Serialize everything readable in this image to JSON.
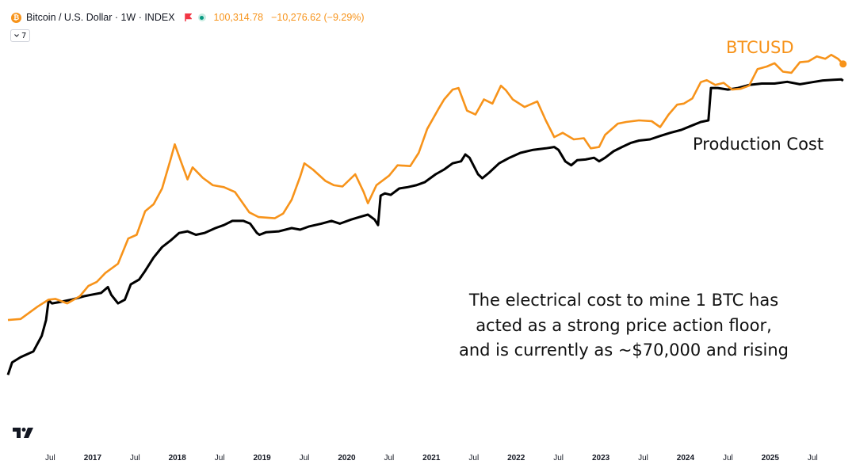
{
  "header": {
    "coin_symbol": "₿",
    "symbol": "Bitcoin / U.S. Dollar · 1W · INDEX",
    "price": "100,314.78",
    "change": "−10,276.62 (−9.29%)",
    "indicator_count": "7"
  },
  "colors": {
    "btc": "#f7931a",
    "cost": "#000000",
    "flag": "#f23645",
    "status": "#089981"
  },
  "icons": [
    "bitcoin-icon",
    "flag-icon",
    "status-dot-icon",
    "chevron-down-icon",
    "tradingview-logo-icon"
  ],
  "chart_data": {
    "type": "line",
    "x_axis": {
      "tick_labels": [
        "Jul",
        "2017",
        "Jul",
        "2018",
        "Jul",
        "2019",
        "Jul",
        "2020",
        "Jul",
        "2021",
        "Jul",
        "2022",
        "Jul",
        "2023",
        "Jul",
        "2024",
        "Jul",
        "2025",
        "Jul"
      ],
      "tick_dates": [
        2016.5,
        2017.0,
        2017.5,
        2018.0,
        2018.5,
        2019.0,
        2019.5,
        2020.0,
        2020.5,
        2021.0,
        2021.5,
        2022.0,
        2022.5,
        2023.0,
        2023.5,
        2024.0,
        2024.5,
        2025.0,
        2025.5
      ],
      "range": [
        2016.0,
        2025.9
      ]
    },
    "y_axis": {
      "scale": "log",
      "visible": false,
      "range": [
        30,
        200000
      ]
    },
    "grid": false,
    "series": [
      {
        "name": "BTCUSD",
        "color": "#f7931a",
        "points": [
          [
            2016.0,
            420
          ],
          [
            2016.15,
            430
          ],
          [
            2016.35,
            560
          ],
          [
            2016.48,
            650
          ],
          [
            2016.56,
            660
          ],
          [
            2016.7,
            600
          ],
          [
            2016.85,
            700
          ],
          [
            2016.95,
            870
          ],
          [
            2017.05,
            950
          ],
          [
            2017.15,
            1150
          ],
          [
            2017.3,
            1400
          ],
          [
            2017.42,
            2400
          ],
          [
            2017.52,
            2600
          ],
          [
            2017.62,
            4300
          ],
          [
            2017.72,
            5000
          ],
          [
            2017.82,
            7000
          ],
          [
            2017.92,
            13000
          ],
          [
            2017.97,
            18000
          ],
          [
            2018.05,
            12000
          ],
          [
            2018.12,
            8500
          ],
          [
            2018.18,
            11000
          ],
          [
            2018.3,
            8800
          ],
          [
            2018.42,
            7500
          ],
          [
            2018.55,
            7200
          ],
          [
            2018.68,
            6500
          ],
          [
            2018.85,
            4200
          ],
          [
            2018.96,
            3800
          ],
          [
            2019.15,
            3700
          ],
          [
            2019.25,
            4100
          ],
          [
            2019.35,
            5500
          ],
          [
            2019.45,
            9000
          ],
          [
            2019.5,
            12000
          ],
          [
            2019.6,
            10500
          ],
          [
            2019.75,
            8200
          ],
          [
            2019.85,
            7500
          ],
          [
            2019.95,
            7300
          ],
          [
            2020.1,
            9500
          ],
          [
            2020.2,
            6500
          ],
          [
            2020.25,
            5100
          ],
          [
            2020.35,
            7500
          ],
          [
            2020.5,
            9200
          ],
          [
            2020.6,
            11500
          ],
          [
            2020.75,
            11300
          ],
          [
            2020.85,
            15000
          ],
          [
            2020.95,
            25000
          ],
          [
            2021.08,
            38000
          ],
          [
            2021.15,
            47000
          ],
          [
            2021.25,
            58000
          ],
          [
            2021.32,
            60000
          ],
          [
            2021.42,
            37000
          ],
          [
            2021.52,
            34000
          ],
          [
            2021.62,
            47000
          ],
          [
            2021.72,
            43000
          ],
          [
            2021.82,
            63000
          ],
          [
            2021.88,
            57000
          ],
          [
            2021.96,
            47000
          ],
          [
            2022.1,
            40000
          ],
          [
            2022.25,
            45000
          ],
          [
            2022.35,
            30000
          ],
          [
            2022.45,
            21000
          ],
          [
            2022.55,
            23000
          ],
          [
            2022.68,
            20000
          ],
          [
            2022.8,
            20500
          ],
          [
            2022.88,
            16500
          ],
          [
            2022.98,
            17000
          ],
          [
            2023.05,
            22000
          ],
          [
            2023.2,
            28000
          ],
          [
            2023.3,
            29000
          ],
          [
            2023.45,
            30000
          ],
          [
            2023.6,
            29500
          ],
          [
            2023.7,
            26000
          ],
          [
            2023.8,
            34000
          ],
          [
            2023.9,
            42000
          ],
          [
            2023.98,
            43000
          ],
          [
            2024.08,
            48000
          ],
          [
            2024.18,
            68000
          ],
          [
            2024.25,
            71000
          ],
          [
            2024.35,
            64000
          ],
          [
            2024.45,
            67000
          ],
          [
            2024.55,
            58000
          ],
          [
            2024.65,
            59000
          ],
          [
            2024.75,
            63000
          ],
          [
            2024.85,
            90000
          ],
          [
            2024.96,
            95000
          ],
          [
            2025.05,
            102000
          ],
          [
            2025.15,
            85000
          ],
          [
            2025.25,
            83000
          ],
          [
            2025.35,
            104000
          ],
          [
            2025.45,
            106000
          ],
          [
            2025.55,
            118000
          ],
          [
            2025.65,
            112000
          ],
          [
            2025.72,
            122000
          ],
          [
            2025.8,
            112000
          ],
          [
            2025.86,
            100314.78
          ]
        ]
      },
      {
        "name": "Production Cost",
        "color": "#000000",
        "points": [
          [
            2016.0,
            130
          ],
          [
            2016.05,
            170
          ],
          [
            2016.15,
            190
          ],
          [
            2016.3,
            215
          ],
          [
            2016.4,
            300
          ],
          [
            2016.45,
            420
          ],
          [
            2016.48,
            640
          ],
          [
            2016.52,
            600
          ],
          [
            2016.6,
            615
          ],
          [
            2016.75,
            650
          ],
          [
            2016.9,
            700
          ],
          [
            2016.98,
            720
          ],
          [
            2017.1,
            750
          ],
          [
            2017.18,
            850
          ],
          [
            2017.22,
            720
          ],
          [
            2017.3,
            600
          ],
          [
            2017.38,
            650
          ],
          [
            2017.45,
            900
          ],
          [
            2017.55,
            1000
          ],
          [
            2017.62,
            1200
          ],
          [
            2017.72,
            1600
          ],
          [
            2017.82,
            2000
          ],
          [
            2017.92,
            2300
          ],
          [
            2018.02,
            2700
          ],
          [
            2018.12,
            2800
          ],
          [
            2018.22,
            2600
          ],
          [
            2018.32,
            2700
          ],
          [
            2018.45,
            3000
          ],
          [
            2018.55,
            3200
          ],
          [
            2018.65,
            3500
          ],
          [
            2018.78,
            3500
          ],
          [
            2018.86,
            3300
          ],
          [
            2018.94,
            2700
          ],
          [
            2018.97,
            2600
          ],
          [
            2019.05,
            2750
          ],
          [
            2019.2,
            2800
          ],
          [
            2019.35,
            3000
          ],
          [
            2019.45,
            2900
          ],
          [
            2019.55,
            3100
          ],
          [
            2019.7,
            3300
          ],
          [
            2019.82,
            3500
          ],
          [
            2019.92,
            3300
          ],
          [
            2020.05,
            3600
          ],
          [
            2020.15,
            3800
          ],
          [
            2020.25,
            4000
          ],
          [
            2020.33,
            3600
          ],
          [
            2020.37,
            3200
          ],
          [
            2020.4,
            6000
          ],
          [
            2020.45,
            6300
          ],
          [
            2020.52,
            6100
          ],
          [
            2020.62,
            7000
          ],
          [
            2020.72,
            7200
          ],
          [
            2020.82,
            7500
          ],
          [
            2020.92,
            8000
          ],
          [
            2021.05,
            9500
          ],
          [
            2021.15,
            10500
          ],
          [
            2021.25,
            12000
          ],
          [
            2021.35,
            12500
          ],
          [
            2021.4,
            14500
          ],
          [
            2021.45,
            13500
          ],
          [
            2021.55,
            9500
          ],
          [
            2021.6,
            8700
          ],
          [
            2021.68,
            9800
          ],
          [
            2021.8,
            12000
          ],
          [
            2021.92,
            13500
          ],
          [
            2022.05,
            15000
          ],
          [
            2022.2,
            16000
          ],
          [
            2022.35,
            16500
          ],
          [
            2022.45,
            17000
          ],
          [
            2022.5,
            16000
          ],
          [
            2022.58,
            12500
          ],
          [
            2022.65,
            11500
          ],
          [
            2022.72,
            12800
          ],
          [
            2022.82,
            13000
          ],
          [
            2022.92,
            13500
          ],
          [
            2022.98,
            12500
          ],
          [
            2023.05,
            13500
          ],
          [
            2023.15,
            15500
          ],
          [
            2023.25,
            17000
          ],
          [
            2023.35,
            18500
          ],
          [
            2023.45,
            19500
          ],
          [
            2023.58,
            20000
          ],
          [
            2023.7,
            21500
          ],
          [
            2023.82,
            23000
          ],
          [
            2023.95,
            24500
          ],
          [
            2024.08,
            27000
          ],
          [
            2024.18,
            29000
          ],
          [
            2024.27,
            30000
          ],
          [
            2024.3,
            60000
          ],
          [
            2024.38,
            60000
          ],
          [
            2024.5,
            58000
          ],
          [
            2024.62,
            60000
          ],
          [
            2024.75,
            64000
          ],
          [
            2024.9,
            66000
          ],
          [
            2025.05,
            66000
          ],
          [
            2025.2,
            68500
          ],
          [
            2025.35,
            65000
          ],
          [
            2025.5,
            68000
          ],
          [
            2025.62,
            70500
          ],
          [
            2025.75,
            71500
          ],
          [
            2025.84,
            72000
          ],
          [
            2025.86,
            70000
          ]
        ]
      }
    ],
    "annotations": [
      {
        "key": "btc_label",
        "text": "BTCUSD"
      },
      {
        "key": "cost_label",
        "text": "Production Cost"
      },
      {
        "key": "note",
        "lines": [
          "The electrical cost to mine 1 BTC has",
          "acted as a strong price action floor,",
          "and is currently as ~$70,000 and rising"
        ]
      }
    ]
  }
}
